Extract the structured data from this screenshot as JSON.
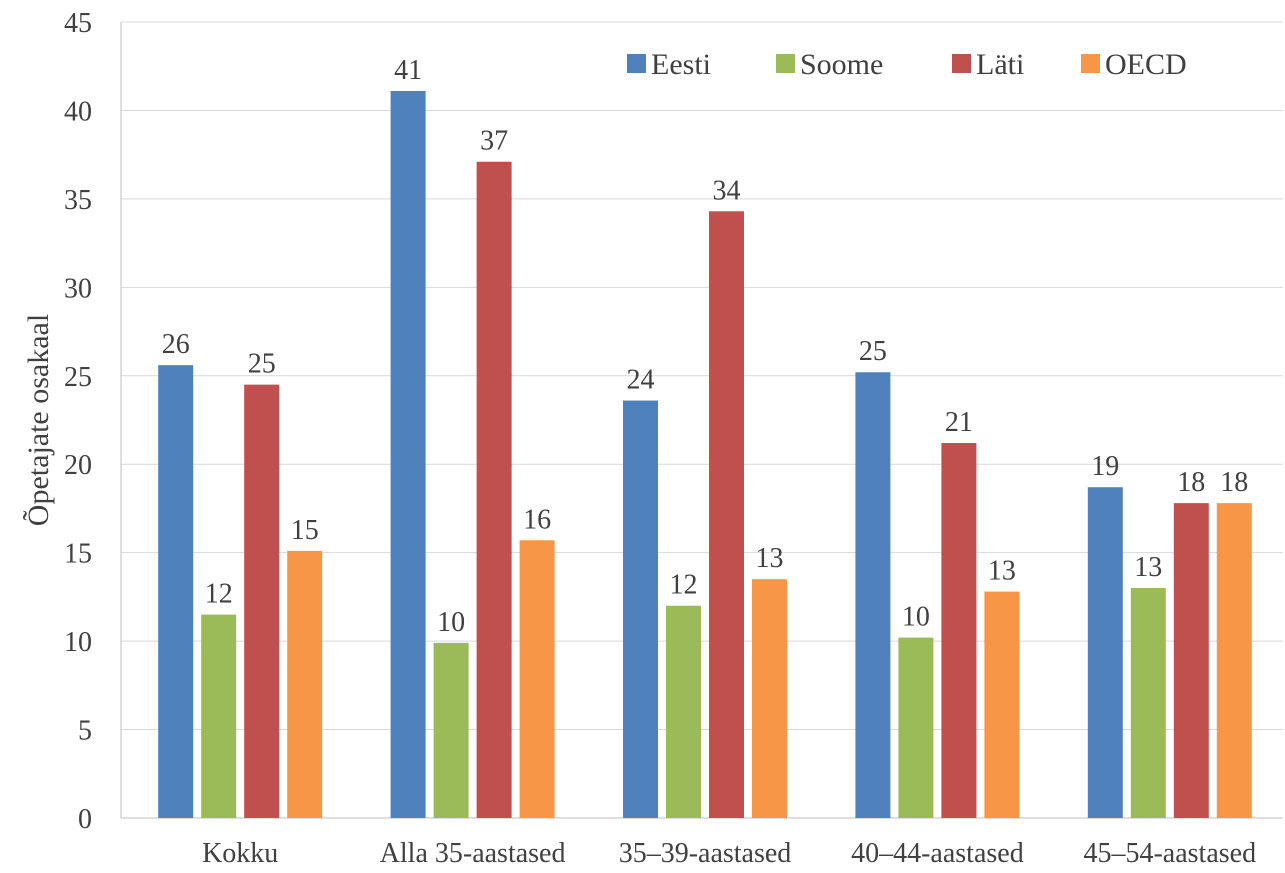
{
  "chart_data": {
    "type": "bar",
    "title": "",
    "xlabel": "",
    "ylabel": "Õpetajate osakaal",
    "ylim": [
      0,
      45
    ],
    "yticks": [
      0,
      5,
      10,
      15,
      20,
      25,
      30,
      35,
      40,
      45
    ],
    "grid": true,
    "legend_position": "top-right",
    "categories": [
      "Kokku",
      "Alla 35-aastased",
      "35–39-aastased",
      "40–44-aastased",
      "45–54-aastased"
    ],
    "series": [
      {
        "name": "Eesti",
        "color": "#4F81BD",
        "values": [
          25.6,
          41.1,
          23.6,
          25.2,
          18.7
        ],
        "labels": [
          "26",
          "41",
          "24",
          "25",
          "19"
        ]
      },
      {
        "name": "Soome",
        "color": "#9BBB59",
        "values": [
          11.5,
          9.9,
          12.0,
          10.2,
          13.0
        ],
        "labels": [
          "12",
          "10",
          "12",
          "10",
          "13"
        ]
      },
      {
        "name": "Läti",
        "color": "#C0504D",
        "values": [
          24.5,
          37.1,
          34.3,
          21.2,
          17.8
        ],
        "labels": [
          "25",
          "37",
          "34",
          "21",
          "18"
        ]
      },
      {
        "name": "OECD",
        "color": "#F79646",
        "values": [
          15.1,
          15.7,
          13.5,
          12.8,
          17.8
        ],
        "labels": [
          "15",
          "16",
          "13",
          "13",
          "18"
        ]
      }
    ]
  }
}
